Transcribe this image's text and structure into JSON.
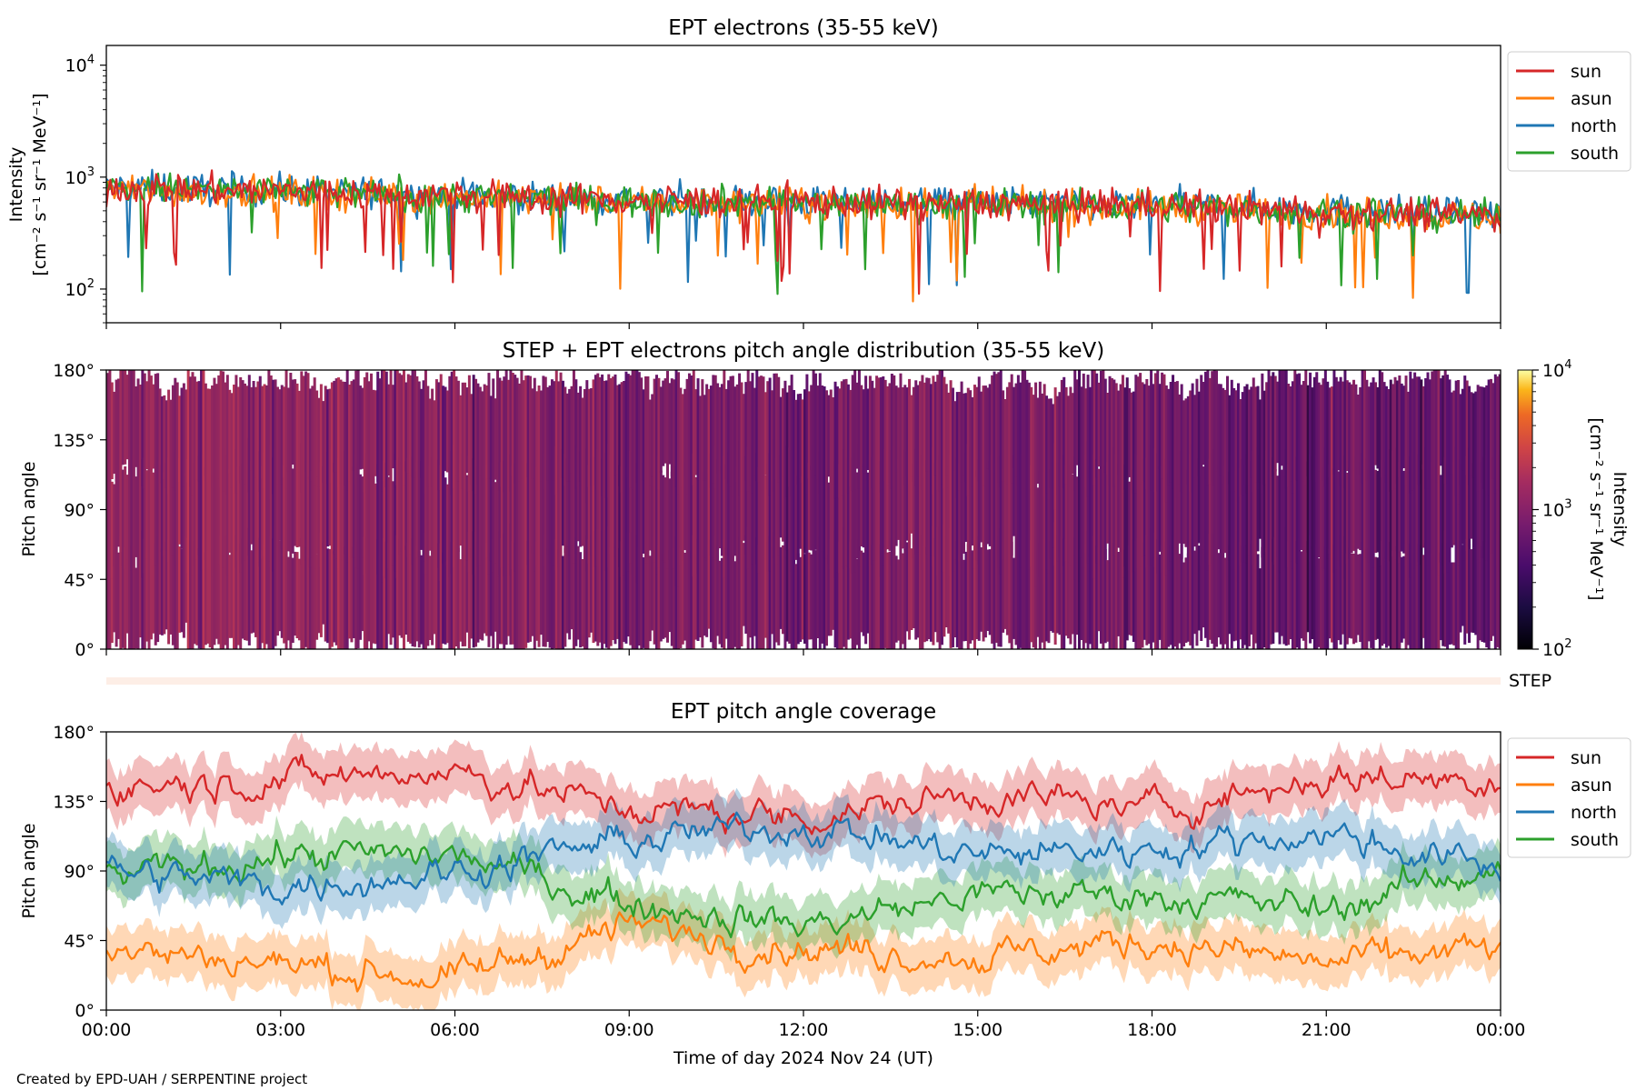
{
  "figure": {
    "footer": "Created by EPD-UAH / SERPENTINE project",
    "xlabel": "Time of day 2024 Nov 24 (UT)",
    "time_ticks": [
      "00:00",
      "03:00",
      "06:00",
      "09:00",
      "12:00",
      "15:00",
      "18:00",
      "21:00",
      "00:00"
    ]
  },
  "panels": {
    "intensity": {
      "title": "EPT electrons (35-55 keV)",
      "ylabel_line1": "Intensity",
      "ylabel_line2": "[cm⁻² s⁻¹ sr⁻¹ MeV⁻¹]",
      "yticks": [
        {
          "base": "10",
          "exp": "4"
        },
        {
          "base": "10",
          "exp": "3"
        },
        {
          "base": "10",
          "exp": "2"
        }
      ],
      "legend": [
        "sun",
        "asun",
        "north",
        "south"
      ]
    },
    "pad": {
      "title": "STEP + EPT electrons pitch angle distribution (35-55 keV)",
      "ylabel": "Pitch angle",
      "yticks": [
        "180°",
        "135°",
        "90°",
        "45°",
        "0°"
      ],
      "colorbar_label_line1": "Intensity",
      "colorbar_label_line2": "[cm⁻² s⁻¹ sr⁻¹ MeV⁻¹]",
      "colorbar_ticks": [
        {
          "base": "10",
          "exp": "4"
        },
        {
          "base": "10",
          "exp": "3"
        },
        {
          "base": "10",
          "exp": "2"
        }
      ],
      "step_label": "STEP"
    },
    "coverage": {
      "title": "EPT pitch angle coverage",
      "ylabel": "Pitch angle",
      "yticks": [
        "180°",
        "135°",
        "90°",
        "45°",
        "0°"
      ],
      "legend": [
        "sun",
        "asun",
        "north",
        "south"
      ]
    }
  },
  "chart_data": [
    {
      "type": "line",
      "title": "EPT electrons (35-55 keV)",
      "xlabel": "Time of day 2024 Nov 24 (UT)",
      "ylabel": "Intensity [cm⁻² s⁻¹ sr⁻¹ MeV⁻¹]",
      "yscale": "log",
      "ylim": [
        50,
        15000
      ],
      "x": [
        "00:00",
        "03:00",
        "06:00",
        "09:00",
        "12:00",
        "15:00",
        "18:00",
        "21:00",
        "24:00"
      ],
      "series": [
        {
          "name": "sun",
          "color": "#d62728",
          "values": [
            800,
            750,
            680,
            620,
            600,
            580,
            560,
            500,
            450
          ]
        },
        {
          "name": "asun",
          "color": "#ff7f0e",
          "values": [
            780,
            730,
            660,
            600,
            580,
            560,
            540,
            480,
            430
          ]
        },
        {
          "name": "north",
          "color": "#1f77b4",
          "values": [
            820,
            760,
            690,
            630,
            610,
            590,
            570,
            510,
            460
          ]
        },
        {
          "name": "south",
          "color": "#2ca02c",
          "values": [
            810,
            740,
            670,
            610,
            600,
            570,
            550,
            490,
            440
          ]
        }
      ],
      "legend_position": "outside-right"
    },
    {
      "type": "heatmap",
      "title": "STEP + EPT electrons pitch angle distribution (35-55 keV)",
      "ylabel": "Pitch angle",
      "ylim": [
        0,
        180
      ],
      "colorscale": "inferno (log)",
      "clim": [
        100,
        10000
      ],
      "typical_intensity": 600
    },
    {
      "type": "line",
      "title": "EPT pitch angle coverage",
      "ylabel": "Pitch angle",
      "ylim": [
        0,
        180
      ],
      "x": [
        "00:00",
        "03:00",
        "06:00",
        "09:00",
        "12:00",
        "15:00",
        "18:00",
        "21:00",
        "24:00"
      ],
      "series": [
        {
          "name": "sun",
          "color": "#d62728",
          "values": [
            145,
            150,
            155,
            130,
            125,
            140,
            130,
            150,
            150
          ]
        },
        {
          "name": "asun",
          "color": "#ff7f0e",
          "values": [
            40,
            30,
            20,
            55,
            40,
            35,
            45,
            30,
            40
          ]
        },
        {
          "name": "north",
          "color": "#1f77b4",
          "values": [
            90,
            80,
            90,
            110,
            120,
            100,
            105,
            115,
            90
          ]
        },
        {
          "name": "south",
          "color": "#2ca02c",
          "values": [
            85,
            100,
            100,
            70,
            55,
            75,
            75,
            65,
            95
          ]
        }
      ],
      "legend_position": "outside-right"
    }
  ]
}
